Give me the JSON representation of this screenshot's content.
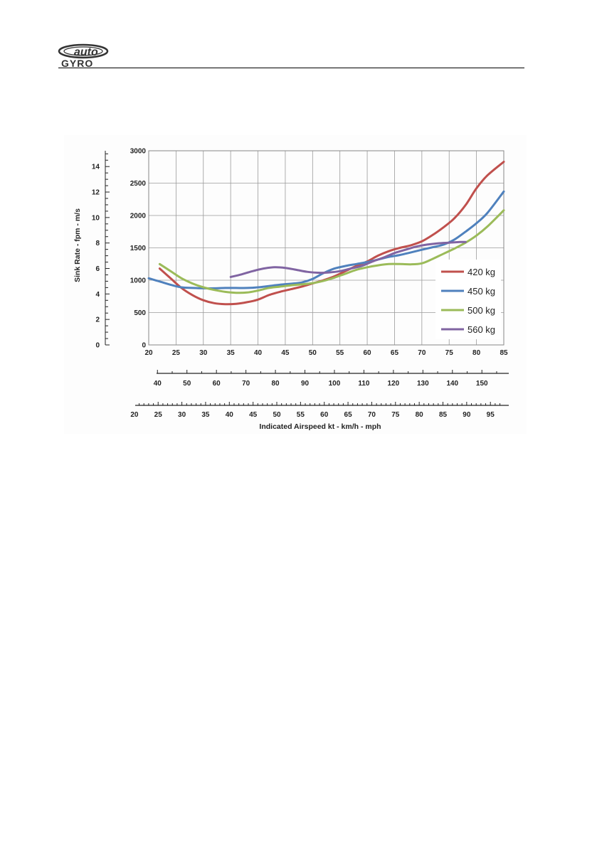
{
  "brand": {
    "line1": "auto",
    "line2": "GYRO"
  },
  "chart_data": {
    "type": "line",
    "x_axis_kt": {
      "min": 20,
      "max": 85,
      "ticks": [
        20,
        25,
        30,
        35,
        40,
        45,
        50,
        55,
        60,
        65,
        70,
        75,
        80,
        85
      ]
    },
    "y_axis_fpm": {
      "min": 0,
      "max": 3000,
      "ticks": [
        0,
        500,
        1000,
        1500,
        2000,
        2500,
        3000
      ]
    },
    "y_axis_ms": {
      "ticks": [
        0,
        2,
        4,
        6,
        8,
        10,
        12,
        14
      ]
    },
    "kmh_ticks": [
      40,
      50,
      60,
      70,
      80,
      90,
      100,
      110,
      120,
      130,
      140,
      150
    ],
    "mph_ticks": [
      20,
      25,
      30,
      35,
      40,
      45,
      50,
      55,
      60,
      65,
      70,
      75,
      80,
      85,
      90,
      95
    ],
    "ylabel": "Sink Rate - fpm - m/s",
    "xlabel": "Indicated Airspeed kt - km/h  - mph",
    "grid": true,
    "legend_position": "bottom-right",
    "series": [
      {
        "name": "420 kg",
        "color": "#C0504D",
        "x": [
          22,
          24,
          26,
          28,
          30,
          32,
          34,
          36,
          38,
          40,
          42,
          44,
          46,
          48,
          50,
          52,
          54,
          56,
          58,
          60,
          62,
          64,
          66,
          68,
          70,
          72,
          74,
          76,
          78,
          80,
          82,
          85
        ],
        "y": [
          1180,
          1030,
          880,
          770,
          690,
          645,
          630,
          635,
          660,
          700,
          770,
          820,
          860,
          900,
          950,
          1000,
          1060,
          1140,
          1220,
          1290,
          1380,
          1450,
          1500,
          1540,
          1600,
          1700,
          1820,
          1960,
          2160,
          2420,
          2620,
          2830
        ]
      },
      {
        "name": "450 kg",
        "color": "#4F81BD",
        "x": [
          20,
          22,
          24,
          26,
          28,
          30,
          32,
          34,
          36,
          38,
          40,
          42,
          44,
          46,
          48,
          50,
          52,
          54,
          56,
          58,
          60,
          62,
          64,
          66,
          68,
          70,
          72,
          74,
          76,
          78,
          80,
          82,
          85
        ],
        "y": [
          1030,
          980,
          930,
          890,
          880,
          875,
          875,
          880,
          880,
          880,
          890,
          910,
          930,
          945,
          965,
          1020,
          1110,
          1180,
          1220,
          1250,
          1280,
          1320,
          1360,
          1390,
          1430,
          1470,
          1510,
          1550,
          1630,
          1750,
          1880,
          2040,
          2370
        ]
      },
      {
        "name": "500 kg",
        "color": "#9BBB59",
        "x": [
          22,
          24,
          26,
          28,
          30,
          32,
          34,
          36,
          38,
          40,
          42,
          44,
          46,
          48,
          50,
          52,
          54,
          56,
          58,
          60,
          62,
          64,
          66,
          68,
          70,
          72,
          74,
          76,
          78,
          80,
          82,
          85
        ],
        "y": [
          1250,
          1140,
          1030,
          950,
          890,
          850,
          820,
          805,
          810,
          840,
          880,
          900,
          920,
          935,
          955,
          990,
          1040,
          1100,
          1160,
          1200,
          1230,
          1250,
          1250,
          1245,
          1260,
          1330,
          1410,
          1490,
          1580,
          1690,
          1830,
          2080
        ]
      },
      {
        "name": "560 kg",
        "color": "#8064A2",
        "x": [
          35,
          37,
          39,
          41,
          43,
          45,
          47,
          49,
          51,
          53,
          55,
          57,
          59,
          61,
          63,
          65,
          67,
          69,
          71,
          73,
          75,
          77,
          78
        ],
        "y": [
          1050,
          1090,
          1140,
          1180,
          1200,
          1190,
          1160,
          1130,
          1115,
          1120,
          1140,
          1180,
          1220,
          1290,
          1350,
          1420,
          1470,
          1520,
          1550,
          1570,
          1580,
          1590,
          1590
        ]
      }
    ]
  }
}
